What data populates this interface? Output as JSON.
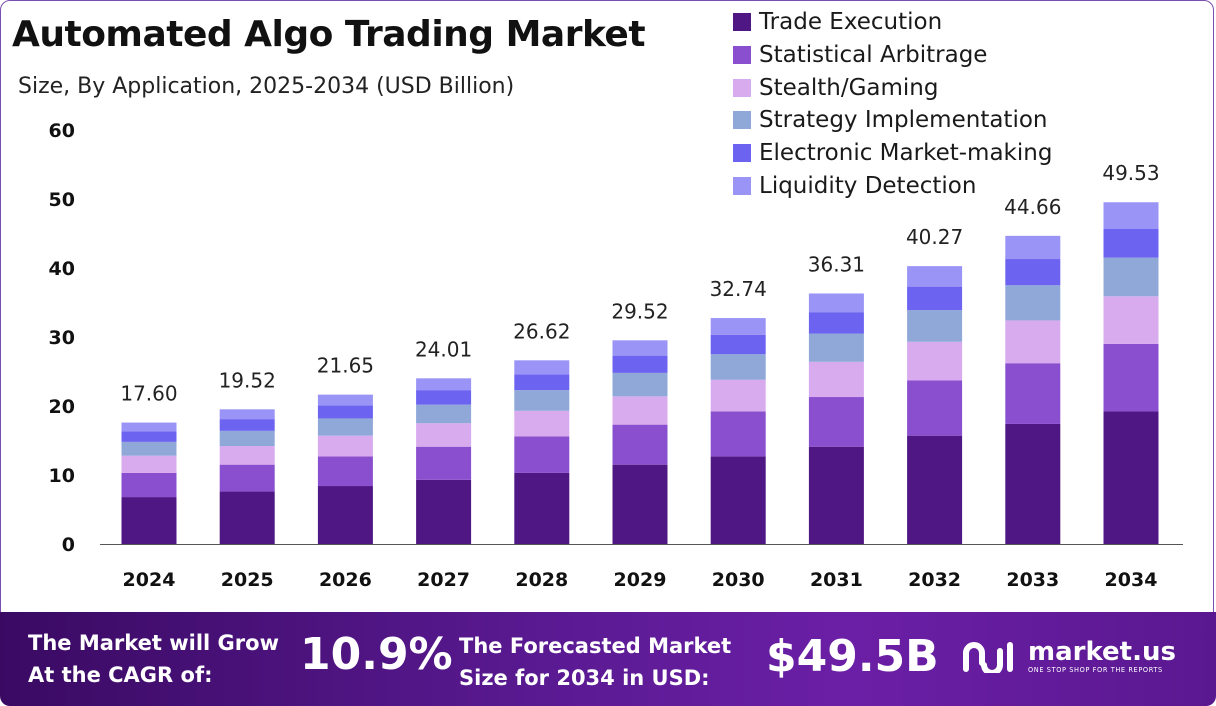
{
  "title": "Automated Algo Trading Market",
  "subtitle": "Size, By Application, 2025-2034 (USD Billion)",
  "chart_data": {
    "type": "bar",
    "stacked": true,
    "categories": [
      "2024",
      "2025",
      "2026",
      "2027",
      "2028",
      "2029",
      "2030",
      "2031",
      "2032",
      "2033",
      "2034"
    ],
    "totals": [
      17.6,
      19.52,
      21.65,
      24.01,
      26.62,
      29.52,
      32.74,
      36.31,
      40.27,
      44.66,
      49.53
    ],
    "total_labels": [
      "17.60",
      "19.52",
      "21.65",
      "24.01",
      "26.62",
      "29.52",
      "32.74",
      "36.31",
      "40.27",
      "44.66",
      "49.53"
    ],
    "series": [
      {
        "name": "Trade Execution",
        "color": "#4f1784",
        "values": [
          6.8,
          7.6,
          8.4,
          9.3,
          10.3,
          11.5,
          12.7,
          14.1,
          15.7,
          17.4,
          19.2
        ]
      },
      {
        "name": "Statistical Arbitrage",
        "color": "#8a4fce",
        "values": [
          3.5,
          3.9,
          4.3,
          4.8,
          5.3,
          5.8,
          6.5,
          7.2,
          8.0,
          8.8,
          9.8
        ]
      },
      {
        "name": "Stealth/Gaming",
        "color": "#d8aaee",
        "values": [
          2.5,
          2.7,
          3.0,
          3.4,
          3.7,
          4.1,
          4.6,
          5.1,
          5.6,
          6.2,
          6.9
        ]
      },
      {
        "name": "Strategy Implementation",
        "color": "#8fa8d8",
        "values": [
          2.0,
          2.2,
          2.5,
          2.7,
          3.0,
          3.4,
          3.7,
          4.1,
          4.6,
          5.1,
          5.6
        ]
      },
      {
        "name": "Electronic Market-making",
        "color": "#6c63f0",
        "values": [
          1.5,
          1.7,
          1.9,
          2.1,
          2.3,
          2.5,
          2.8,
          3.1,
          3.4,
          3.8,
          4.2
        ]
      },
      {
        "name": "Liquidity Detection",
        "color": "#9994f6",
        "values": [
          1.3,
          1.42,
          1.55,
          1.71,
          2.02,
          2.22,
          2.44,
          2.71,
          2.97,
          3.36,
          3.83
        ]
      }
    ],
    "y_ticks": [
      "0",
      "10",
      "20",
      "30",
      "40",
      "50",
      "60"
    ],
    "ylim": [
      0,
      60
    ],
    "legend_position": "top-right",
    "grid": false
  },
  "footer": {
    "cagr_line1": "The Market will Grow",
    "cagr_line2": "At the CAGR of:",
    "cagr_value": "10.9%",
    "forecast_line1": "The Forecasted Market",
    "forecast_line2": "Size for 2034 in USD:",
    "forecast_value": "$49.5B",
    "brand_name": "market.us",
    "brand_tagline": "ONE STOP SHOP FOR THE REPORTS"
  }
}
